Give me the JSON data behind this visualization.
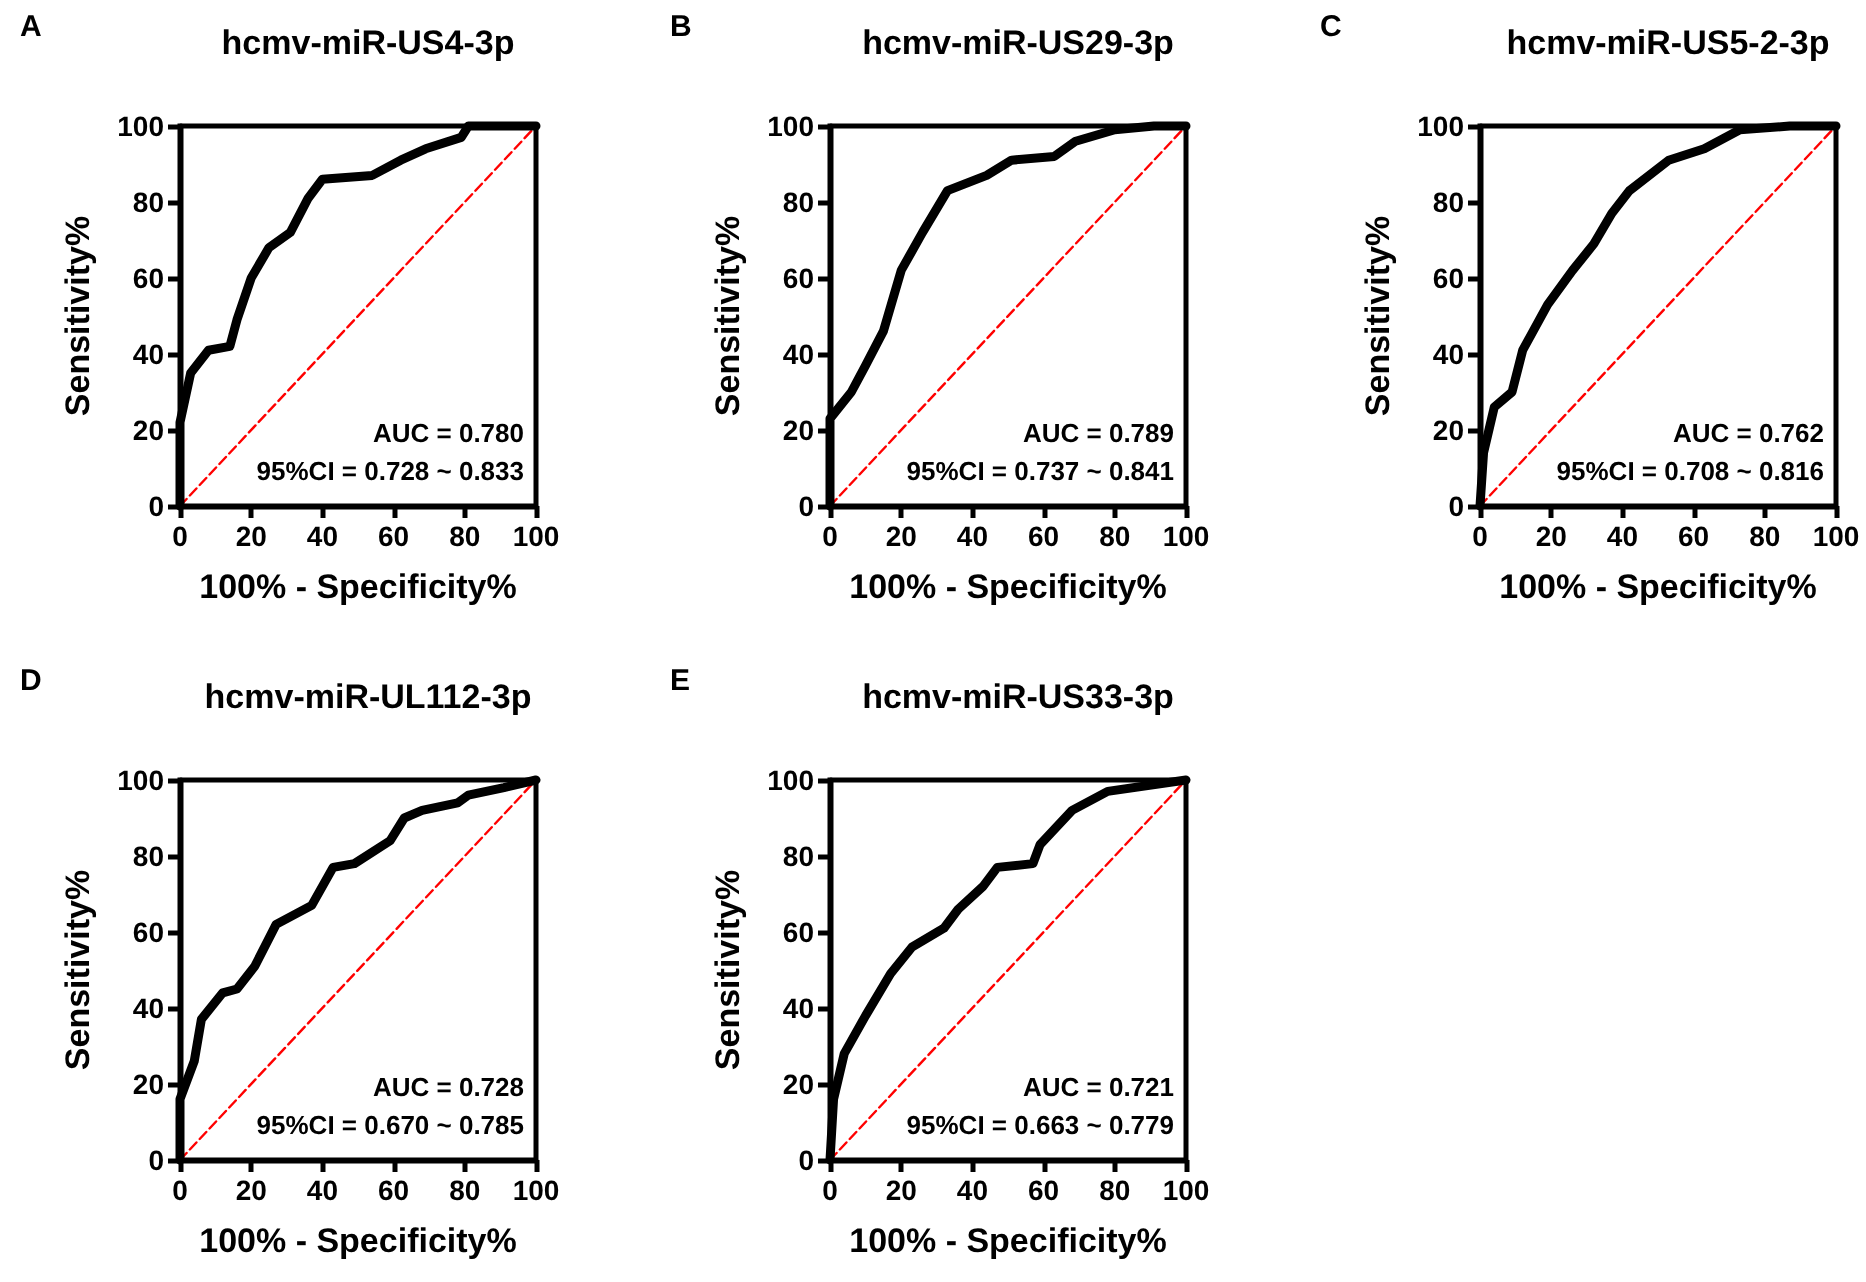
{
  "chart_data": [
    {
      "type": "line",
      "title": "hcmv-miR-US4-3p",
      "xlabel": "100% - Specificity%",
      "ylabel": "Sensitivity%",
      "annotations": [
        "A",
        "AUC = 0.780",
        "95%CI = 0.728 ~ 0.833"
      ],
      "xlim": [
        0,
        100
      ],
      "ylim": [
        0,
        100
      ],
      "xticks": [
        0,
        20,
        40,
        60,
        80,
        100
      ],
      "yticks": [
        0,
        20,
        40,
        60,
        80,
        100
      ],
      "grid": false,
      "marker": "none",
      "series": [
        {
          "color": "#000000",
          "line_style": "solid",
          "x": [
            0,
            0,
            3,
            8,
            14,
            16,
            20,
            25,
            31,
            36,
            40,
            54,
            62,
            69,
            79,
            81,
            100
          ],
          "values": [
            0,
            22,
            35,
            41,
            42,
            49,
            60,
            68,
            72,
            81,
            86,
            87,
            91,
            94,
            97,
            100,
            100
          ]
        },
        {
          "color": "#ff0000",
          "line_style": "dashed",
          "x": [
            0,
            100
          ],
          "values": [
            0,
            100
          ]
        }
      ]
    },
    {
      "type": "line",
      "title": "hcmv-miR-US29-3p",
      "xlabel": "100% - Specificity%",
      "ylabel": "Sensitivity%",
      "annotations": [
        "B",
        "AUC = 0.789",
        "95%CI = 0.737 ~ 0.841"
      ],
      "xlim": [
        0,
        100
      ],
      "ylim": [
        0,
        100
      ],
      "xticks": [
        0,
        20,
        40,
        60,
        80,
        100
      ],
      "yticks": [
        0,
        20,
        40,
        60,
        80,
        100
      ],
      "grid": false,
      "marker": "none",
      "series": [
        {
          "color": "#000000",
          "line_style": "solid",
          "x": [
            0,
            0,
            6,
            10,
            15,
            20,
            26,
            33,
            44,
            51,
            63,
            69,
            80,
            91,
            100
          ],
          "values": [
            0,
            23,
            30,
            37,
            46,
            62,
            72,
            83,
            87,
            91,
            92,
            96,
            99,
            100,
            100
          ]
        },
        {
          "color": "#ff0000",
          "line_style": "dashed",
          "x": [
            0,
            100
          ],
          "values": [
            0,
            100
          ]
        }
      ]
    },
    {
      "type": "line",
      "title": "hcmv-miR-US5-2-3p",
      "xlabel": "100% - Specificity%",
      "ylabel": "Sensitivity%",
      "annotations": [
        "C",
        "AUC = 0.762",
        "95%CI = 0.708 ~ 0.816"
      ],
      "xlim": [
        0,
        100
      ],
      "ylim": [
        0,
        100
      ],
      "xticks": [
        0,
        20,
        40,
        60,
        80,
        100
      ],
      "yticks": [
        0,
        20,
        40,
        60,
        80,
        100
      ],
      "grid": false,
      "marker": "none",
      "series": [
        {
          "color": "#000000",
          "line_style": "solid",
          "x": [
            0,
            1,
            4,
            9,
            12,
            19,
            26,
            32,
            37,
            42,
            53,
            63,
            73,
            87,
            100
          ],
          "values": [
            0,
            14,
            26,
            30,
            41,
            53,
            62,
            69,
            77,
            83,
            91,
            94,
            99,
            100,
            100
          ]
        },
        {
          "color": "#ff0000",
          "line_style": "dashed",
          "x": [
            0,
            100
          ],
          "values": [
            0,
            100
          ]
        }
      ]
    },
    {
      "type": "line",
      "title": "hcmv-miR-UL112-3p",
      "xlabel": "100% - Specificity%",
      "ylabel": "Sensitivity%",
      "annotations": [
        "D",
        "AUC = 0.728",
        "95%CI = 0.670 ~ 0.785"
      ],
      "xlim": [
        0,
        100
      ],
      "ylim": [
        0,
        100
      ],
      "xticks": [
        0,
        20,
        40,
        60,
        80,
        100
      ],
      "yticks": [
        0,
        20,
        40,
        60,
        80,
        100
      ],
      "grid": false,
      "marker": "none",
      "series": [
        {
          "color": "#000000",
          "line_style": "solid",
          "x": [
            0,
            0,
            4,
            6,
            12,
            16,
            21,
            27,
            37,
            43,
            49,
            59,
            63,
            68,
            78,
            81,
            91,
            100
          ],
          "values": [
            0,
            16,
            26,
            37,
            44,
            45,
            51,
            62,
            67,
            77,
            78,
            84,
            90,
            92,
            94,
            96,
            98,
            100
          ]
        },
        {
          "color": "#ff0000",
          "line_style": "dashed",
          "x": [
            0,
            100
          ],
          "values": [
            0,
            100
          ]
        }
      ]
    },
    {
      "type": "line",
      "title": "hcmv-miR-US33-3p",
      "xlabel": "100% - Specificity%",
      "ylabel": "Sensitivity%",
      "annotations": [
        "E",
        "AUC = 0.721",
        "95%CI = 0.663 ~ 0.779"
      ],
      "xlim": [
        0,
        100
      ],
      "ylim": [
        0,
        100
      ],
      "xticks": [
        0,
        20,
        40,
        60,
        80,
        100
      ],
      "yticks": [
        0,
        20,
        40,
        60,
        80,
        100
      ],
      "grid": false,
      "marker": "none",
      "series": [
        {
          "color": "#000000",
          "line_style": "solid",
          "x": [
            0,
            1,
            4,
            10,
            17,
            23,
            32,
            36,
            43,
            47,
            57,
            59,
            68,
            78,
            100
          ],
          "values": [
            0,
            16,
            28,
            38,
            49,
            56,
            61,
            66,
            72,
            77,
            78,
            83,
            92,
            97,
            100
          ]
        },
        {
          "color": "#ff0000",
          "line_style": "dashed",
          "x": [
            0,
            100
          ],
          "values": [
            0,
            100
          ]
        }
      ]
    }
  ]
}
